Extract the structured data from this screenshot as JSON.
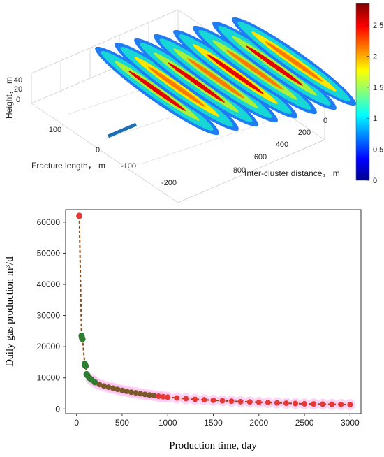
{
  "chart_data": [
    {
      "type": "surface3d",
      "title": "",
      "xlabel": "Inter-cluster distance， m",
      "ylabel": "Fracture length， m",
      "zlabel": "Height， m",
      "x_ticks": [
        "0",
        "200",
        "400",
        "600",
        "800"
      ],
      "y_ticks": [
        "100",
        "0",
        "-100",
        "-200"
      ],
      "z_ticks": [
        "40",
        "20",
        "0"
      ],
      "colorbar": {
        "ticks": [
          "0",
          "0.5",
          "1",
          "1.5",
          "2",
          "2.5"
        ],
        "range": [
          0,
          2.85
        ]
      },
      "fractures_count": 8,
      "colormap": "jet",
      "colors": [
        "#00008f",
        "#0000ff",
        "#00ffff",
        "#ffff00",
        "#ff0000",
        "#800000"
      ]
    },
    {
      "type": "scatter",
      "title": "",
      "xlabel": "Production time, day",
      "ylabel": "Daily gas production m³/d",
      "xlim": [
        -120,
        3120
      ],
      "ylim": [
        -1500,
        64000
      ],
      "x_ticks": [
        0,
        500,
        1000,
        1500,
        2000,
        2500,
        3000
      ],
      "y_ticks": [
        0,
        10000,
        20000,
        30000,
        40000,
        50000,
        60000
      ],
      "series": [
        {
          "x": [
            30,
            55,
            60,
            65,
            90,
            95,
            100,
            110,
            120,
            140,
            160,
            200,
            250,
            300,
            350,
            400,
            450,
            500,
            550,
            600,
            650,
            700,
            750,
            800,
            850,
            900,
            950,
            1000,
            1100,
            1200,
            1300,
            1400,
            1500,
            1600,
            1700,
            1800,
            1900,
            2000,
            2100,
            2200,
            2300,
            2400,
            2500,
            2600,
            2700,
            2800,
            2900,
            3000
          ],
          "y": [
            62000,
            23500,
            22800,
            22500,
            14500,
            14000,
            13800,
            11200,
            10800,
            10000,
            9500,
            8600,
            7900,
            7400,
            7000,
            6700,
            6300,
            6000,
            5700,
            5400,
            5200,
            4900,
            4700,
            4500,
            4300,
            4100,
            3950,
            3800,
            3550,
            3300,
            3100,
            2950,
            2800,
            2650,
            2500,
            2350,
            2250,
            2150,
            2050,
            1950,
            1850,
            1750,
            1650,
            1600,
            1550,
            1500,
            1450,
            1400
          ],
          "colors": {
            "line": "#8a4a10",
            "early": "#2e7d32",
            "late": "#e53935",
            "halo": "#ffb3ee"
          }
        }
      ]
    }
  ]
}
